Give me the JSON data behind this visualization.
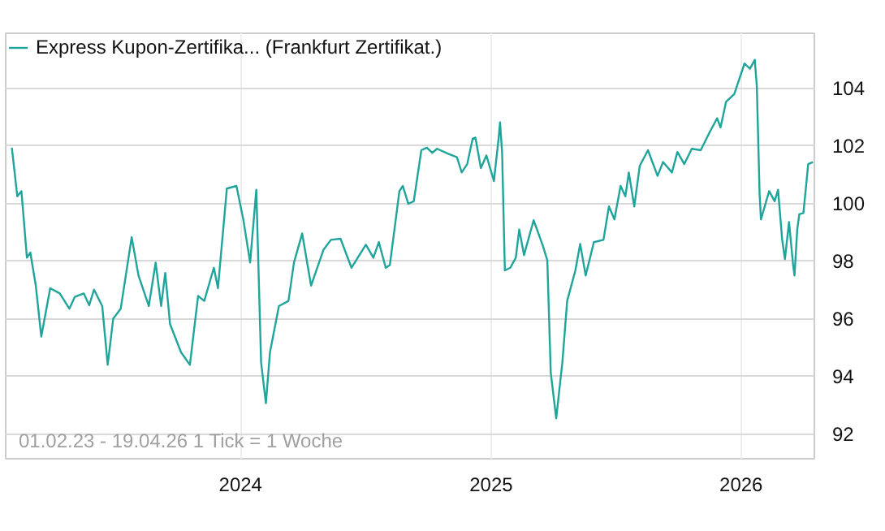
{
  "chart_data": {
    "type": "line",
    "legend": "top left",
    "grid": true,
    "marker": "none",
    "line_style": "solid",
    "xlim": [
      "2023-01-23",
      "2026-04-18"
    ],
    "ylim": [
      91.13,
      105.9
    ],
    "xticks": [
      {
        "value": "2024-01-01",
        "label": "2024"
      },
      {
        "value": "2025-01-01",
        "label": "2025"
      },
      {
        "value": "2026-01-01",
        "label": "2026"
      }
    ],
    "yticks": [
      92,
      94,
      96,
      98,
      100,
      102,
      104
    ],
    "annotations": [
      "01.02.23 - 19.04.26   1 Tick = 1 Woche"
    ],
    "x": [
      "2023-02-01",
      "2023-02-09",
      "2023-02-15",
      "2023-02-23",
      "2023-02-28",
      "2023-03-08",
      "2023-03-16",
      "2023-03-29",
      "2023-04-12",
      "2023-04-26",
      "2023-05-04",
      "2023-05-17",
      "2023-05-25",
      "2023-06-01",
      "2023-06-13",
      "2023-06-21",
      "2023-06-29",
      "2023-07-10",
      "2023-07-26",
      "2023-08-05",
      "2023-08-20",
      "2023-08-30",
      "2023-09-07",
      "2023-09-13",
      "2023-09-20",
      "2023-10-06",
      "2023-10-19",
      "2023-10-31",
      "2023-11-09",
      "2023-11-23",
      "2023-11-29",
      "2023-12-12",
      "2023-12-26",
      "2024-01-05",
      "2024-01-15",
      "2024-01-24",
      "2024-01-31",
      "2024-02-07",
      "2024-02-13",
      "2024-02-26",
      "2024-03-11",
      "2024-03-19",
      "2024-03-31",
      "2024-04-13",
      "2024-05-01",
      "2024-05-12",
      "2024-05-26",
      "2024-06-11",
      "2024-07-02",
      "2024-07-13",
      "2024-07-21",
      "2024-07-31",
      "2024-08-06",
      "2024-08-20",
      "2024-08-25",
      "2024-09-02",
      "2024-09-10",
      "2024-09-21",
      "2024-09-29",
      "2024-10-07",
      "2024-10-14",
      "2024-10-31",
      "2024-11-12",
      "2024-11-19",
      "2024-11-27",
      "2024-12-05",
      "2024-12-09",
      "2024-12-17",
      "2024-12-25",
      "2025-01-05",
      "2025-01-12",
      "2025-01-14",
      "2025-01-17",
      "2025-01-21",
      "2025-01-29",
      "2025-02-06",
      "2025-02-11",
      "2025-02-18",
      "2025-03-04",
      "2025-03-17",
      "2025-03-24",
      "2025-03-29",
      "2025-04-06",
      "2025-04-15",
      "2025-04-22",
      "2025-05-04",
      "2025-05-11",
      "2025-05-19",
      "2025-05-31",
      "2025-06-14",
      "2025-06-22",
      "2025-06-30",
      "2025-07-09",
      "2025-07-16",
      "2025-07-21",
      "2025-07-29",
      "2025-08-06",
      "2025-08-18",
      "2025-09-01",
      "2025-09-09",
      "2025-09-22",
      "2025-09-30",
      "2025-10-10",
      "2025-10-21",
      "2025-11-03",
      "2025-11-16",
      "2025-11-27",
      "2025-12-02",
      "2025-12-10",
      "2025-12-22",
      "2026-01-06",
      "2026-01-14",
      "2026-01-21",
      "2026-01-24",
      "2026-01-28",
      "2026-01-30",
      "2026-02-11",
      "2026-02-19",
      "2026-02-24",
      "2026-03-02",
      "2026-03-06",
      "2026-03-12",
      "2026-03-18",
      "2026-03-20",
      "2026-03-24",
      "2026-03-27",
      "2026-04-02",
      "2026-04-09",
      "2026-04-16"
    ],
    "series": [
      {
        "name": "Express Kupon-Zertifika... (Frankfurt Zertifikat.)",
        "color": "#1fa59b",
        "values": [
          101.93,
          100.24,
          100.42,
          98.11,
          98.29,
          97.14,
          95.37,
          97.05,
          96.87,
          96.34,
          96.75,
          96.87,
          96.46,
          97.0,
          96.43,
          94.39,
          95.99,
          96.34,
          98.82,
          97.49,
          96.43,
          97.94,
          96.43,
          97.58,
          95.81,
          94.83,
          94.39,
          96.78,
          96.61,
          97.76,
          97.05,
          100.51,
          100.6,
          99.44,
          97.94,
          100.47,
          94.48,
          93.06,
          94.83,
          96.43,
          96.61,
          97.94,
          98.95,
          97.14,
          98.38,
          98.73,
          98.77,
          97.76,
          98.56,
          98.11,
          98.65,
          97.76,
          97.85,
          100.42,
          100.6,
          99.98,
          100.07,
          101.84,
          101.93,
          101.75,
          101.89,
          101.71,
          101.6,
          101.07,
          101.36,
          102.24,
          102.28,
          101.22,
          101.66,
          100.77,
          102.28,
          102.81,
          101.75,
          97.67,
          97.76,
          98.11,
          99.09,
          98.2,
          99.41,
          98.56,
          98.02,
          94.12,
          92.53,
          94.48,
          96.61,
          97.67,
          98.59,
          97.49,
          98.65,
          98.73,
          99.89,
          99.44,
          100.6,
          100.24,
          101.07,
          99.89,
          101.3,
          101.84,
          100.95,
          101.43,
          101.07,
          101.78,
          101.36,
          101.89,
          101.84,
          102.46,
          102.95,
          102.63,
          103.52,
          103.79,
          104.85,
          104.67,
          104.98,
          104.05,
          100.33,
          99.44,
          100.42,
          100.07,
          100.47,
          98.73,
          98.06,
          99.35,
          97.85,
          97.49,
          99.09,
          99.62,
          99.66,
          101.36,
          101.43
        ]
      }
    ]
  }
}
